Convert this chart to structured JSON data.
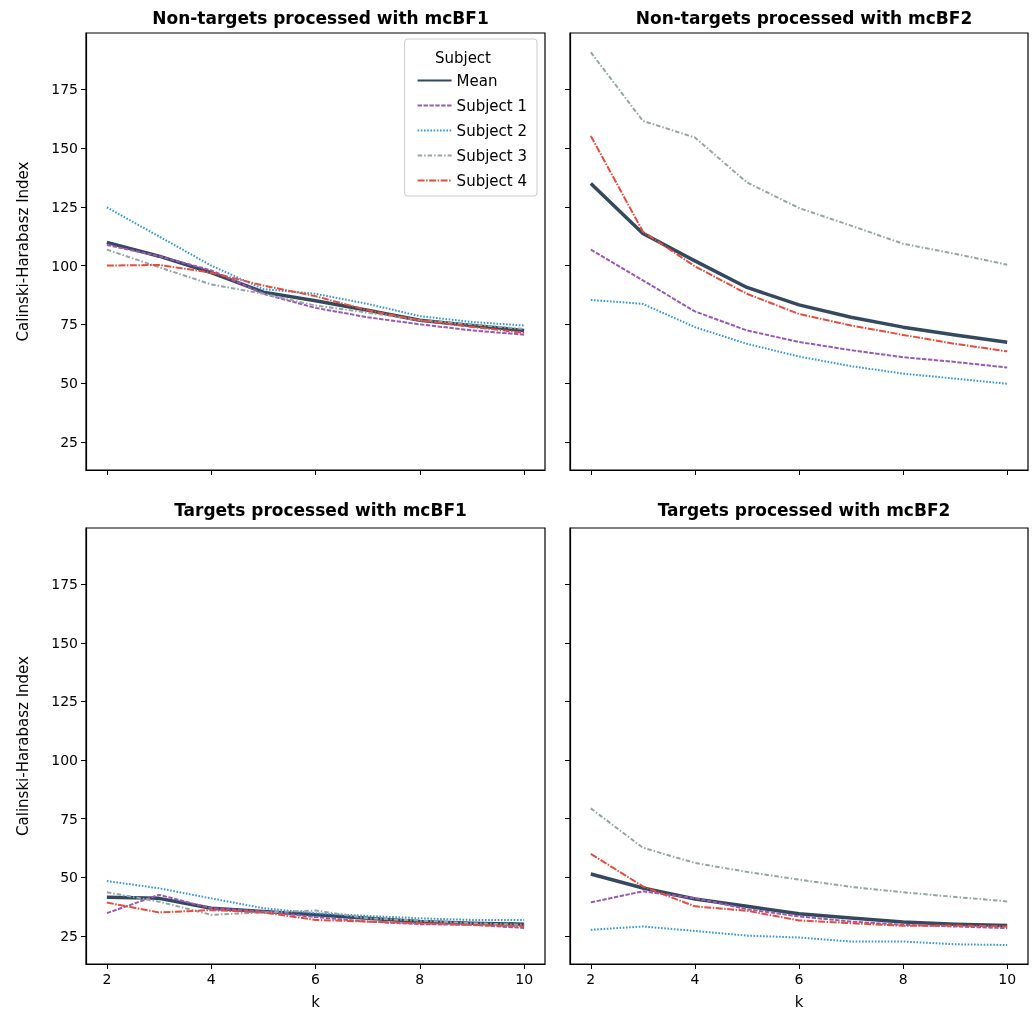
{
  "chart_data": [
    {
      "type": "line",
      "title": "Non-targets processed with mcBF1",
      "ylabel": "Calinski-Harabasz Index",
      "legend_title": "Subject",
      "legend": "top right",
      "tick_labels": "y",
      "grid": false,
      "marker": "none",
      "x": [
        2,
        3,
        4,
        5,
        6,
        7,
        8,
        9,
        10
      ],
      "xlim": [
        1.6,
        10.4
      ],
      "xticks": [
        2,
        4,
        6,
        8,
        10
      ],
      "ylim": [
        13,
        199
      ],
      "yticks": [
        25,
        50,
        75,
        100,
        125,
        150,
        175
      ],
      "series": [
        {
          "name": "Mean",
          "color": "#34495e",
          "line_style": "solid",
          "values": [
            109.9,
            104,
            97,
            88.7,
            85,
            81,
            76.7,
            74.5,
            72.4
          ]
        },
        {
          "name": "Subject 1",
          "color": "#9b59b6",
          "line_style": "dashed",
          "values": [
            108.8,
            104,
            98,
            88,
            82,
            78,
            75,
            72.4,
            70.6
          ]
        },
        {
          "name": "Subject 2",
          "color": "#3498db",
          "line_style": "dotted",
          "values": [
            124.8,
            112.4,
            100,
            90,
            88,
            83.7,
            78.5,
            76,
            74.5
          ]
        },
        {
          "name": "Subject 3",
          "color": "#95a5a6",
          "line_style": "dashdot",
          "values": [
            106.8,
            99.3,
            92,
            88,
            83,
            80,
            76.7,
            75,
            73
          ]
        },
        {
          "name": "Subject 4",
          "color": "#e74c3c",
          "line_style": "longdashdot",
          "values": [
            100,
            100.3,
            97,
            91.5,
            87,
            81,
            76.7,
            73.9,
            71.4
          ]
        }
      ]
    },
    {
      "type": "line",
      "title": "Non-targets processed with mcBF2",
      "tick_labels": false,
      "grid": false,
      "marker": "none",
      "x": [
        2,
        3,
        4,
        5,
        6,
        7,
        8,
        9,
        10
      ],
      "xlim": [
        1.6,
        10.4
      ],
      "xticks": [
        2,
        4,
        6,
        8,
        10
      ],
      "ylim": [
        13,
        199
      ],
      "yticks": [
        25,
        50,
        75,
        100,
        125,
        150,
        175
      ],
      "series": [
        {
          "color": "#34495e",
          "line_style": "solid",
          "values": [
            134.9,
            113.7,
            102,
            90.7,
            83.3,
            78,
            73.8,
            70.5,
            67.4
          ]
        },
        {
          "color": "#9b59b6",
          "line_style": "dashed",
          "values": [
            106.8,
            93.7,
            80.5,
            72.4,
            67.5,
            64,
            61,
            59,
            56.6
          ]
        },
        {
          "color": "#3498db",
          "line_style": "dotted",
          "values": [
            85.4,
            83.7,
            73.8,
            66.7,
            61.3,
            57.2,
            54,
            51.9,
            49.7
          ]
        },
        {
          "color": "#95a5a6",
          "line_style": "dashdot",
          "values": [
            190.8,
            161.6,
            154.5,
            135.4,
            124.5,
            117,
            109.3,
            105,
            100.4
          ]
        },
        {
          "color": "#e74c3c",
          "line_style": "longdashdot",
          "values": [
            155.2,
            114.5,
            99.7,
            88,
            79.4,
            74.5,
            70.5,
            66.7,
            63.5
          ]
        }
      ]
    },
    {
      "type": "line",
      "title": "Targets processed with mcBF1",
      "xlabel": "k",
      "ylabel": "Calinski-Harabasz Index",
      "grid": false,
      "marker": "none",
      "x": [
        2,
        3,
        4,
        5,
        6,
        7,
        8,
        9,
        10
      ],
      "xlim": [
        1.6,
        10.4
      ],
      "xticks": [
        2,
        4,
        6,
        8,
        10
      ],
      "ylim": [
        13,
        199
      ],
      "yticks": [
        25,
        50,
        75,
        100,
        125,
        150,
        175
      ],
      "series": [
        {
          "color": "#34495e",
          "line_style": "solid",
          "values": [
            41.5,
            41,
            36.8,
            35.4,
            34,
            32.5,
            31.1,
            30.4,
            30
          ]
        },
        {
          "color": "#9b59b6",
          "line_style": "dashed",
          "values": [
            34.7,
            42.5,
            36.8,
            35.4,
            33,
            31.1,
            30,
            29.7,
            28.4
          ]
        },
        {
          "color": "#3498db",
          "line_style": "dotted",
          "values": [
            48.4,
            45.3,
            41,
            36.8,
            34.7,
            33.5,
            32.5,
            31.8,
            31.8
          ]
        },
        {
          "color": "#95a5a6",
          "line_style": "dashdot",
          "values": [
            43.6,
            39.6,
            34,
            35,
            35.8,
            32.5,
            31.5,
            30.4,
            29.7
          ]
        },
        {
          "color": "#e74c3c",
          "line_style": "longdashdot",
          "values": [
            39.2,
            35,
            36,
            35,
            31.8,
            31.1,
            30.4,
            29.7,
            29
          ]
        }
      ]
    },
    {
      "type": "line",
      "title": "Targets processed with mcBF2",
      "xlabel": "k",
      "tick_labels": "x",
      "grid": false,
      "marker": "none",
      "x": [
        2,
        3,
        4,
        5,
        6,
        7,
        8,
        9,
        10
      ],
      "xlim": [
        1.6,
        10.4
      ],
      "xticks": [
        2,
        4,
        6,
        8,
        10
      ],
      "ylim": [
        13,
        199
      ],
      "yticks": [
        25,
        50,
        75,
        100,
        125,
        150,
        175
      ],
      "series": [
        {
          "color": "#34495e",
          "line_style": "solid",
          "values": [
            51.4,
            45.4,
            40.7,
            37.6,
            34.4,
            32.6,
            30.9,
            30,
            29.4
          ]
        },
        {
          "color": "#9b59b6",
          "line_style": "dashed",
          "values": [
            39.3,
            44,
            41.1,
            36.4,
            33.3,
            31.1,
            29.7,
            29,
            28.3
          ]
        },
        {
          "color": "#3498db",
          "line_style": "dotted",
          "values": [
            27.6,
            29,
            27.1,
            25.1,
            24.3,
            22.6,
            22.6,
            21.4,
            21.1
          ]
        },
        {
          "color": "#95a5a6",
          "line_style": "dashdot",
          "values": [
            79.4,
            62.6,
            56.1,
            52.3,
            49,
            45.9,
            43.6,
            41.6,
            39.7
          ]
        },
        {
          "color": "#e74c3c",
          "line_style": "longdashdot",
          "values": [
            60,
            46.1,
            37.6,
            35.7,
            31.6,
            30.4,
            29.3,
            29.4,
            29
          ]
        }
      ]
    }
  ]
}
